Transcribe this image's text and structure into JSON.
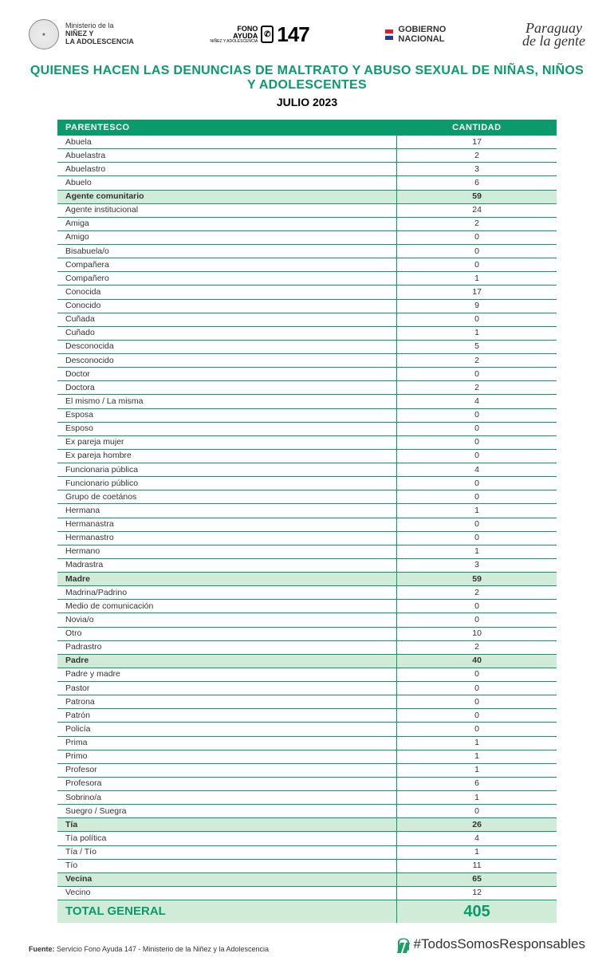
{
  "colors": {
    "primary": "#0b9b6b",
    "header_bg": "#0b9b6b",
    "row_border": "#0b9b6b",
    "highlight_bg": "#d0ecd9",
    "total_bg": "#d0ecd9",
    "title_color": "#0b9b6b",
    "flag_red": "#d2232a",
    "flag_blue": "#1f3a93"
  },
  "header": {
    "ministerio_line1": "Ministerio de la",
    "ministerio_line2": "NIÑEZ Y",
    "ministerio_line3": "LA ADOLESCENCIA",
    "fono_line1": "FONO",
    "fono_line2": "AYUDA",
    "fono_sub": "NIÑEZ Y\nADOLESCENCIA",
    "fono_number": "147",
    "gobierno_line1": "GOBIERNO",
    "gobierno_line2": "NACIONAL",
    "slogan_line1": "Paraguay",
    "slogan_line2": "de la gente"
  },
  "title": "QUIENES HACEN LAS DENUNCIAS DE MALTRATO Y ABUSO SEXUAL DE NIÑAS, NIÑOS Y ADOLESCENTES",
  "subtitle": "JULIO 2023",
  "table": {
    "columns": [
      "PARENTESCO",
      "CANTIDAD"
    ],
    "rows": [
      {
        "label": "Abuela",
        "value": "17",
        "hl": false
      },
      {
        "label": "Abuelastra",
        "value": "2",
        "hl": false
      },
      {
        "label": "Abuelastro",
        "value": "3",
        "hl": false
      },
      {
        "label": "Abuelo",
        "value": "6",
        "hl": false
      },
      {
        "label": "Agente comunitario",
        "value": "59",
        "hl": true
      },
      {
        "label": "Agente institucional",
        "value": "24",
        "hl": false
      },
      {
        "label": "Amiga",
        "value": "2",
        "hl": false
      },
      {
        "label": "Amigo",
        "value": "0",
        "hl": false
      },
      {
        "label": "Bisabuela/o",
        "value": "0",
        "hl": false
      },
      {
        "label": "Compañera",
        "value": "0",
        "hl": false
      },
      {
        "label": "Compañero",
        "value": "1",
        "hl": false
      },
      {
        "label": "Conocida",
        "value": "17",
        "hl": false
      },
      {
        "label": "Conocido",
        "value": "9",
        "hl": false
      },
      {
        "label": "Cuñada",
        "value": "0",
        "hl": false
      },
      {
        "label": "Cuñado",
        "value": "1",
        "hl": false
      },
      {
        "label": "Desconocida",
        "value": "5",
        "hl": false
      },
      {
        "label": "Desconocido",
        "value": "2",
        "hl": false
      },
      {
        "label": "Doctor",
        "value": "0",
        "hl": false
      },
      {
        "label": "Doctora",
        "value": "2",
        "hl": false
      },
      {
        "label": "El mismo / La misma",
        "value": "4",
        "hl": false
      },
      {
        "label": "Esposa",
        "value": "0",
        "hl": false
      },
      {
        "label": "Esposo",
        "value": "0",
        "hl": false
      },
      {
        "label": "Ex pareja mujer",
        "value": "0",
        "hl": false
      },
      {
        "label": "Ex pareja hombre",
        "value": "0",
        "hl": false
      },
      {
        "label": "Funcionaria pública",
        "value": "4",
        "hl": false
      },
      {
        "label": "Funcionario público",
        "value": "0",
        "hl": false
      },
      {
        "label": "Grupo de coetános",
        "value": "0",
        "hl": false
      },
      {
        "label": "Hermana",
        "value": "1",
        "hl": false
      },
      {
        "label": "Hermanastra",
        "value": "0",
        "hl": false
      },
      {
        "label": "Hermanastro",
        "value": "0",
        "hl": false
      },
      {
        "label": "Hermano",
        "value": "1",
        "hl": false
      },
      {
        "label": "Madrastra",
        "value": "3",
        "hl": false
      },
      {
        "label": "Madre",
        "value": "59",
        "hl": true
      },
      {
        "label": "Madrina/Padrino",
        "value": "2",
        "hl": false
      },
      {
        "label": "Medio de comunicación",
        "value": "0",
        "hl": false
      },
      {
        "label": "Novia/o",
        "value": "0",
        "hl": false
      },
      {
        "label": "Otro",
        "value": "10",
        "hl": false
      },
      {
        "label": "Padrastro",
        "value": "2",
        "hl": false
      },
      {
        "label": "Padre",
        "value": "40",
        "hl": true
      },
      {
        "label": "Padre y madre",
        "value": "0",
        "hl": false
      },
      {
        "label": "Pastor",
        "value": "0",
        "hl": false
      },
      {
        "label": "Patrona",
        "value": "0",
        "hl": false
      },
      {
        "label": "Patrón",
        "value": "0",
        "hl": false
      },
      {
        "label": "Policía",
        "value": "0",
        "hl": false
      },
      {
        "label": "Prima",
        "value": "1",
        "hl": false
      },
      {
        "label": "Primo",
        "value": "1",
        "hl": false
      },
      {
        "label": "Profesor",
        "value": "1",
        "hl": false
      },
      {
        "label": "Profesora",
        "value": "6",
        "hl": false
      },
      {
        "label": "Sobrino/a",
        "value": "1",
        "hl": false
      },
      {
        "label": "Suegro / Suegra",
        "value": "0",
        "hl": false
      },
      {
        "label": "Tía",
        "value": "26",
        "hl": true
      },
      {
        "label": "Tía política",
        "value": "4",
        "hl": false
      },
      {
        "label": "Tía / Tío",
        "value": "1",
        "hl": false
      },
      {
        "label": "Tío",
        "value": "11",
        "hl": false
      },
      {
        "label": "Vecina",
        "value": "65",
        "hl": true
      },
      {
        "label": "Vecino",
        "value": "12",
        "hl": false
      }
    ],
    "total_label": "TOTAL GENERAL",
    "total_value": "405"
  },
  "footer": {
    "source_label": "Fuente:",
    "source_text": "Servicio Fono Ayuda 147 - Ministerio de la Niñez y la Adolescencia",
    "hashtag": "#TodosSomosResponsables"
  }
}
